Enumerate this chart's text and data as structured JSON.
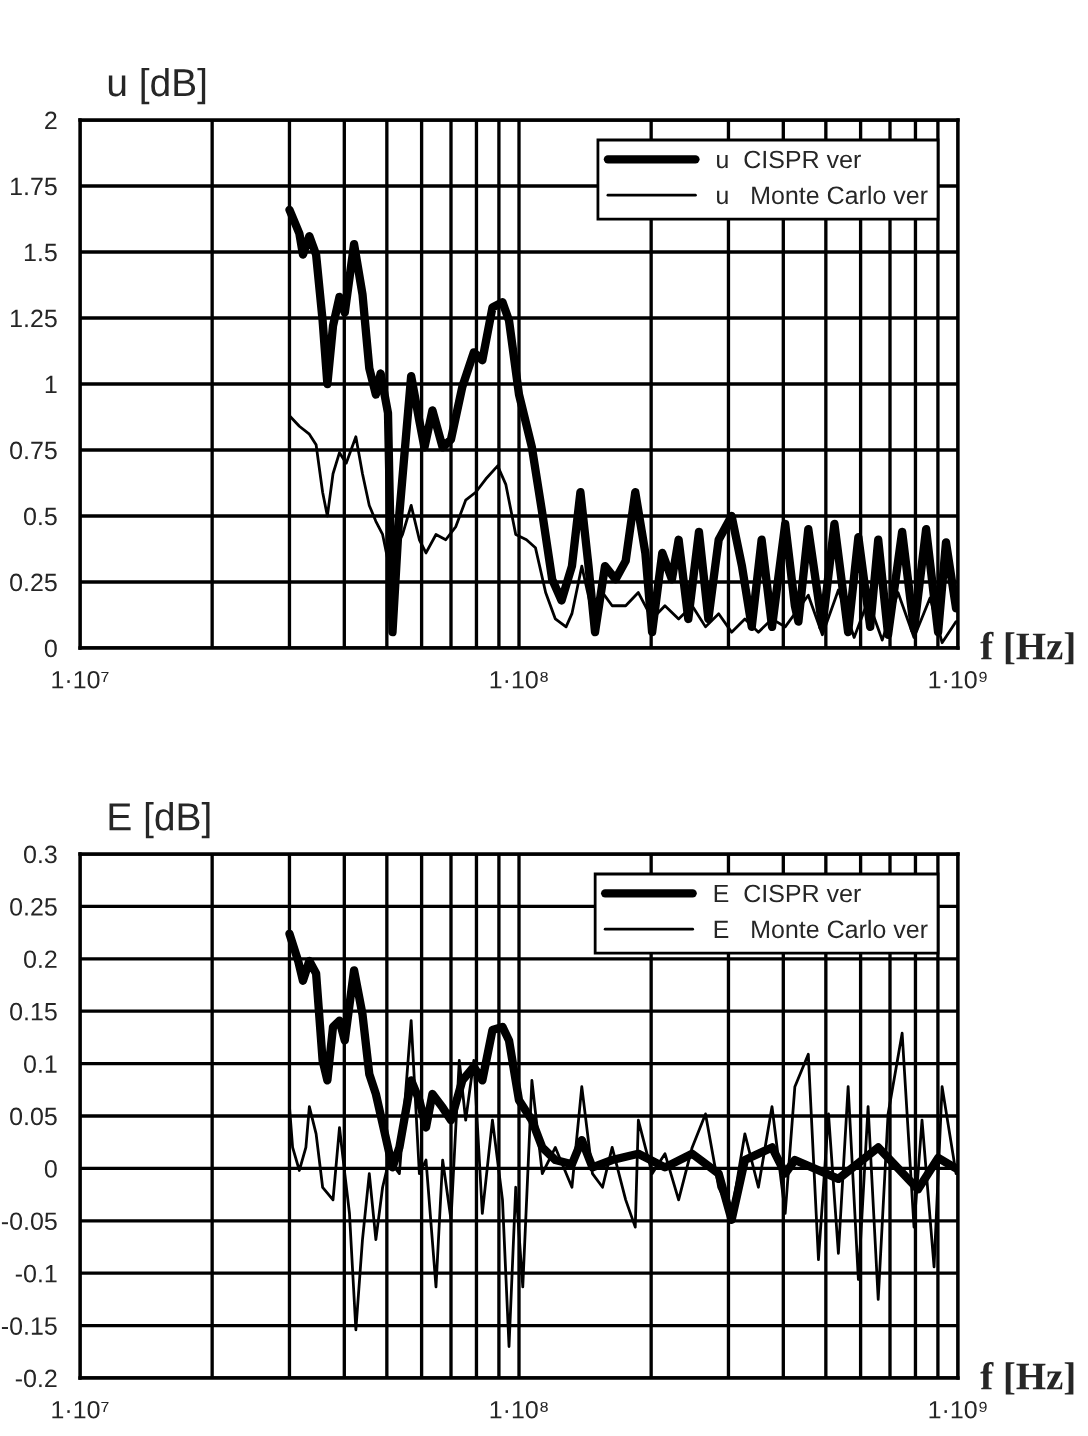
{
  "chart_data": [
    {
      "type": "line",
      "ylabel": "u [dB]",
      "xlabel": "f [Hz]",
      "log": "x",
      "grid": true,
      "legend": "top right",
      "xlim": [
        10000000,
        1000000000
      ],
      "ylim": [
        0,
        2
      ],
      "xticks": [
        {
          "value": 10000000,
          "label": "1·10⁷"
        },
        {
          "value": 20000000,
          "label": null
        },
        {
          "value": 30000000,
          "label": null
        },
        {
          "value": 40000000,
          "label": null
        },
        {
          "value": 50000000,
          "label": null
        },
        {
          "value": 60000000,
          "label": null
        },
        {
          "value": 70000000,
          "label": null
        },
        {
          "value": 80000000,
          "label": null
        },
        {
          "value": 90000000,
          "label": null
        },
        {
          "value": 100000000,
          "label": "1·10⁸"
        },
        {
          "value": 200000000,
          "label": null
        },
        {
          "value": 300000000,
          "label": null
        },
        {
          "value": 400000000,
          "label": null
        },
        {
          "value": 500000000,
          "label": null
        },
        {
          "value": 600000000,
          "label": null
        },
        {
          "value": 700000000,
          "label": null
        },
        {
          "value": 800000000,
          "label": null
        },
        {
          "value": 900000000,
          "label": null
        },
        {
          "value": 1000000000,
          "label": "1·10⁹"
        }
      ],
      "yticks": [
        0,
        0.25,
        0.5,
        0.75,
        1,
        1.25,
        1.5,
        1.75,
        2
      ],
      "series": [
        {
          "name": "u  CISPR ver",
          "color": "#000000",
          "x": [
            30000000.0,
            31600000.0,
            32200000.0,
            33300000.0,
            34500000.0,
            35700000.0,
            36600000.0,
            37700000.0,
            39000000.0,
            40100000.0,
            42100000.0,
            44000000.0,
            45600000.0,
            47200000.0,
            48400000.0,
            50300000.0,
            51500000.0,
            53400000.0,
            56800000.0,
            59300000.0,
            60900000.0,
            63500000.0,
            67000000.0,
            70000000.0,
            74300000.0,
            78900000.0,
            82500000.0,
            87000000.0,
            91700000.0,
            94900000.0,
            100000000.0,
            107000000.0,
            113000000.0,
            119000000.0,
            125000000.0,
            132000000.0,
            138000000.0,
            144000000.0,
            149000000.0,
            157000000.0,
            166000000.0,
            175000000.0,
            184000000.0,
            194000000.0,
            201000000.0,
            212000000.0,
            223000000.0,
            231000000.0,
            243000000.0,
            257000000.0,
            270000000.0,
            285000000.0,
            305000000.0,
            322000000.0,
            339000000.0,
            357000000.0,
            377000000.0,
            404000000.0,
            425000000.0,
            433000000.0,
            456000000.0,
            491000000.0,
            523000000.0,
            562000000.0,
            593000000.0,
            631000000.0,
            658000000.0,
            693000000.0,
            746000000.0,
            794000000.0,
            846000000.0,
            901000000.0,
            939000000.0,
            990000000.0
          ],
          "values": [
            1.66,
            1.57,
            1.49,
            1.56,
            1.49,
            1.24,
            1.0,
            1.22,
            1.33,
            1.27,
            1.53,
            1.34,
            1.06,
            0.96,
            1.04,
            0.89,
            0.06,
            0.51,
            1.03,
            0.86,
            0.76,
            0.9,
            0.76,
            0.79,
            0.99,
            1.12,
            1.09,
            1.29,
            1.31,
            1.24,
            0.96,
            0.76,
            0.51,
            0.26,
            0.18,
            0.31,
            0.59,
            0.31,
            0.06,
            0.31,
            0.26,
            0.33,
            0.59,
            0.36,
            0.06,
            0.36,
            0.26,
            0.41,
            0.11,
            0.44,
            0.11,
            0.41,
            0.5,
            0.31,
            0.08,
            0.41,
            0.08,
            0.47,
            0.16,
            0.1,
            0.45,
            0.08,
            0.47,
            0.06,
            0.42,
            0.08,
            0.41,
            0.05,
            0.44,
            0.07,
            0.45,
            0.06,
            0.4,
            0.15
          ]
        },
        {
          "name": "u   Monte Carlo ver",
          "color": "#000000",
          "x": [
            30000000.0,
            31600000.0,
            33300000.0,
            34500000.0,
            35700000.0,
            36600000.0,
            37700000.0,
            39000000.0,
            40400000.0,
            42500000.0,
            44000000.0,
            45600000.0,
            47200000.0,
            48900000.0,
            50600000.0,
            52500000.0,
            54300000.0,
            56800000.0,
            59300000.0,
            61400000.0,
            64700000.0,
            68100000.0,
            71800000.0,
            75600000.0,
            79700000.0,
            84000000.0,
            89400000.0,
            93300000.0,
            98300000.0,
            104000000.0,
            109000000.0,
            115000000.0,
            121000000.0,
            128000000.0,
            132000000.0,
            139000000.0,
            147000000.0,
            155000000.0,
            163000000.0,
            175000000.0,
            187000000.0,
            201000000.0,
            215000000.0,
            231000000.0,
            248000000.0,
            266000000.0,
            285000000.0,
            305000000.0,
            327000000.0,
            351000000.0,
            377000000.0,
            404000000.0,
            456000000.0,
            491000000.0,
            534000000.0,
            580000000.0,
            624000000.0,
            672000000.0,
            730000000.0,
            794000000.0,
            864000000.0,
            920000000.0,
            990000000.0
          ],
          "values": [
            0.88,
            0.84,
            0.81,
            0.77,
            0.59,
            0.5,
            0.66,
            0.74,
            0.7,
            0.8,
            0.66,
            0.54,
            0.48,
            0.43,
            0.31,
            0.38,
            0.43,
            0.54,
            0.41,
            0.36,
            0.43,
            0.41,
            0.46,
            0.56,
            0.59,
            0.64,
            0.69,
            0.62,
            0.43,
            0.41,
            0.38,
            0.21,
            0.11,
            0.08,
            0.13,
            0.31,
            0.13,
            0.21,
            0.16,
            0.16,
            0.21,
            0.11,
            0.16,
            0.11,
            0.16,
            0.08,
            0.13,
            0.06,
            0.11,
            0.06,
            0.11,
            0.08,
            0.2,
            0.05,
            0.22,
            0.04,
            0.18,
            0.03,
            0.21,
            0.04,
            0.19,
            0.02,
            0.1
          ]
        }
      ]
    },
    {
      "type": "line",
      "ylabel": "E [dB]",
      "xlabel": "f [Hz]",
      "log": "x",
      "grid": true,
      "legend": "top right",
      "xlim": [
        10000000,
        1000000000
      ],
      "ylim": [
        -0.2,
        0.3
      ],
      "xticks": [
        {
          "value": 10000000,
          "label": "1·10⁷"
        },
        {
          "value": 20000000,
          "label": null
        },
        {
          "value": 30000000,
          "label": null
        },
        {
          "value": 40000000,
          "label": null
        },
        {
          "value": 50000000,
          "label": null
        },
        {
          "value": 60000000,
          "label": null
        },
        {
          "value": 70000000,
          "label": null
        },
        {
          "value": 80000000,
          "label": null
        },
        {
          "value": 90000000,
          "label": null
        },
        {
          "value": 100000000,
          "label": "1·10⁸"
        },
        {
          "value": 200000000,
          "label": null
        },
        {
          "value": 300000000,
          "label": null
        },
        {
          "value": 400000000,
          "label": null
        },
        {
          "value": 500000000,
          "label": null
        },
        {
          "value": 600000000,
          "label": null
        },
        {
          "value": 700000000,
          "label": null
        },
        {
          "value": 800000000,
          "label": null
        },
        {
          "value": 900000000,
          "label": null
        },
        {
          "value": 1000000000,
          "label": "1·10⁹"
        }
      ],
      "yticks": [
        -0.2,
        -0.15,
        -0.1,
        -0.05,
        0,
        0.05,
        0.1,
        0.15,
        0.2,
        0.25,
        0.3
      ],
      "series": [
        {
          "name": "E  CISPR ver",
          "color": "#000000",
          "x": [
            30000000.0,
            31400000.0,
            32200000.0,
            33300000.0,
            34500000.0,
            35700000.0,
            36600000.0,
            37700000.0,
            39000000.0,
            40100000.0,
            42100000.0,
            44000000.0,
            45600000.0,
            47200000.0,
            50300000.0,
            51500000.0,
            53400000.0,
            56800000.0,
            59300000.0,
            61400000.0,
            63500000.0,
            67000000.0,
            70000000.0,
            74300000.0,
            78900000.0,
            82500000.0,
            87000000.0,
            91700000.0,
            94900000.0,
            100000000.0,
            107000000.0,
            113000000.0,
            121000000.0,
            132000000.0,
            139000000.0,
            147000000.0,
            163000000.0,
            187000000.0,
            215000000.0,
            248000000.0,
            285000000.0,
            305000000.0,
            327000000.0,
            377000000.0,
            404000000.0,
            425000000.0,
            534000000.0,
            658000000.0,
            811000000.0,
            901000000.0,
            990000000.0
          ],
          "values": [
            0.224,
            0.198,
            0.179,
            0.198,
            0.186,
            0.103,
            0.084,
            0.135,
            0.141,
            0.122,
            0.189,
            0.147,
            0.09,
            0.071,
            0.02,
            0.001,
            0.02,
            0.084,
            0.065,
            0.039,
            0.071,
            0.058,
            0.046,
            0.084,
            0.097,
            0.084,
            0.132,
            0.135,
            0.122,
            0.065,
            0.046,
            0.02,
            0.008,
            0.004,
            0.027,
            0.001,
            0.008,
            0.014,
            0.001,
            0.014,
            -0.005,
            -0.049,
            0.008,
            0.02,
            -0.005,
            0.008,
            -0.01,
            0.02,
            -0.02,
            0.01,
            0.0
          ]
        },
        {
          "name": "E   Monte Carlo ver",
          "color": "#000000",
          "x": [
            30000000.0,
            30500000.0,
            31600000.0,
            32700000.0,
            33300000.0,
            34500000.0,
            35700000.0,
            37700000.0,
            39000000.0,
            40100000.0,
            41100000.0,
            42500000.0,
            44000000.0,
            45600000.0,
            47200000.0,
            48900000.0,
            50600000.0,
            53400000.0,
            56800000.0,
            59300000.0,
            61400000.0,
            64700000.0,
            67000000.0,
            70000000.0,
            73100000.0,
            75600000.0,
            78900000.0,
            82500000.0,
            87000000.0,
            91700000.0,
            94900000.0,
            98300000.0,
            102000000.0,
            107000000.0,
            113000000.0,
            121000000.0,
            132000000.0,
            139000000.0,
            147000000.0,
            155000000.0,
            163000000.0,
            175000000.0,
            184000000.0,
            187000000.0,
            201000000.0,
            215000000.0,
            231000000.0,
            248000000.0,
            266000000.0,
            285000000.0,
            305000000.0,
            327000000.0,
            351000000.0,
            377000000.0,
            404000000.0,
            425000000.0,
            456000000.0,
            481000000.0,
            507000000.0,
            534000000.0,
            562000000.0,
            593000000.0,
            624000000.0,
            658000000.0,
            693000000.0,
            746000000.0,
            794000000.0,
            828000000.0,
            882000000.0,
            920000000.0,
            990000000.0
          ],
          "values": [
            0.059,
            0.02,
            -0.002,
            0.02,
            0.059,
            0.033,
            -0.018,
            -0.03,
            0.039,
            -0.005,
            -0.043,
            -0.154,
            -0.068,
            -0.005,
            -0.068,
            -0.018,
            0.008,
            -0.005,
            0.141,
            -0.005,
            0.008,
            -0.113,
            0.008,
            -0.049,
            0.103,
            0.046,
            0.103,
            -0.043,
            0.046,
            -0.03,
            -0.17,
            -0.018,
            -0.113,
            0.084,
            -0.005,
            0.02,
            -0.018,
            0.078,
            -0.005,
            -0.018,
            0.02,
            -0.03,
            -0.056,
            0.046,
            -0.005,
            0.014,
            -0.03,
            0.02,
            0.052,
            -0.018,
            -0.043,
            0.033,
            -0.018,
            0.059,
            -0.043,
            0.078,
            0.109,
            -0.087,
            0.052,
            -0.081,
            0.078,
            -0.106,
            0.059,
            -0.125,
            0.052,
            0.129,
            -0.056,
            0.046,
            -0.094,
            0.078,
            -0.005
          ]
        }
      ]
    }
  ]
}
